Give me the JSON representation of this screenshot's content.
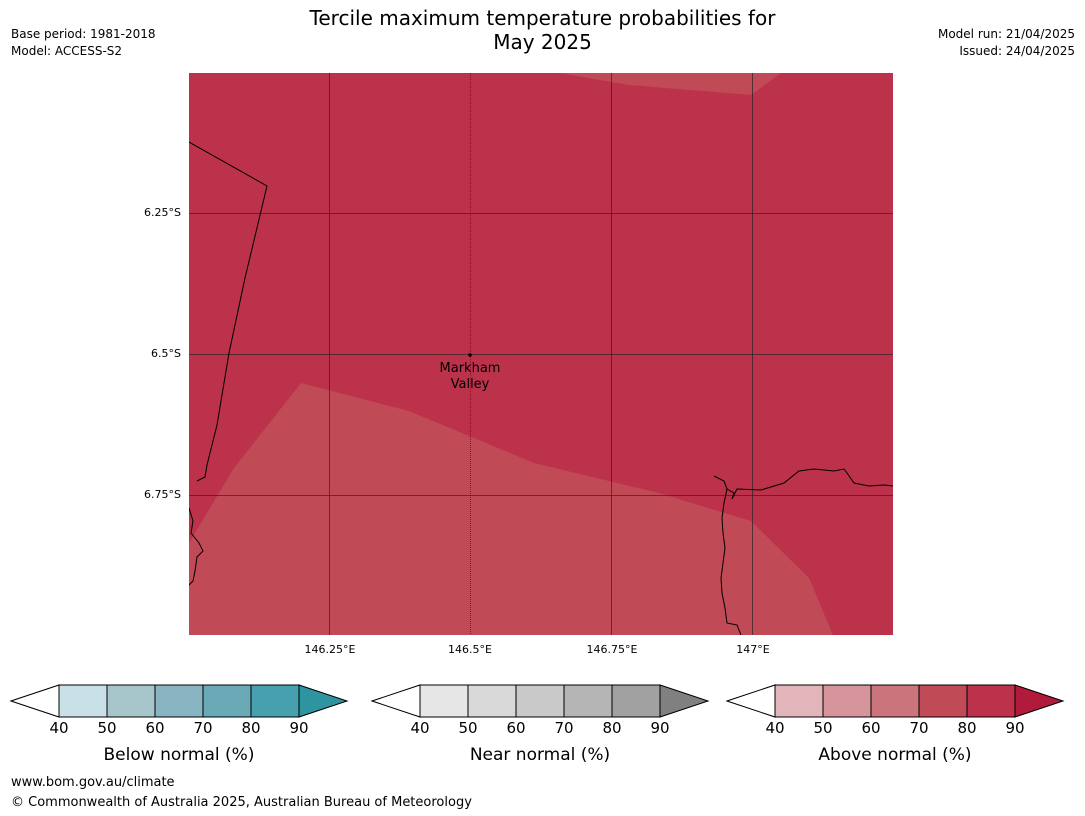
{
  "header": {
    "title_line1": "Tercile maximum temperature probabilities for",
    "title_line2": "May 2025",
    "base_period": "Base period: 1981-2018",
    "model": "Model: ACCESS-S2",
    "model_run": "Model run: 21/04/2025",
    "issued": "Issued: 24/04/2025"
  },
  "map": {
    "lat_labels": [
      "6.25°S",
      "6.5°S",
      "6.75°S"
    ],
    "lon_labels": [
      "146.25°E",
      "146.5°E",
      "146.75°E",
      "147°E"
    ],
    "place": {
      "name_line1": "Markham",
      "name_line2": "Valley",
      "lon": 146.5,
      "lat": -6.5
    },
    "colors": {
      "above_80_90": "#BB324A",
      "above_70_80": "#C14A57"
    }
  },
  "colorbars": [
    {
      "caption": "Below normal (%)",
      "ticks": [
        "40",
        "50",
        "60",
        "70",
        "80",
        "90"
      ],
      "colors": [
        "#ffffff",
        "#C8E1E6",
        "#A7C6CB",
        "#89B4C1",
        "#6AAAB7",
        "#46A0AE",
        "#2D94A0"
      ]
    },
    {
      "caption": "Near normal (%)",
      "ticks": [
        "40",
        "50",
        "60",
        "70",
        "80",
        "90"
      ],
      "colors": [
        "#ffffff",
        "#E6E6E6",
        "#D9D9D9",
        "#C9C9C9",
        "#B5B5B5",
        "#A1A1A1",
        "#808080"
      ]
    },
    {
      "caption": "Above normal (%)",
      "ticks": [
        "40",
        "50",
        "60",
        "70",
        "80",
        "90"
      ],
      "colors": [
        "#ffffff",
        "#E1B5BA",
        "#D6949B",
        "#CB747C",
        "#C14A57",
        "#BB324A",
        "#B01B3B"
      ]
    }
  ],
  "footer": {
    "url": "www.bom.gov.au/climate",
    "copyright": "© Commonwealth of Australia 2025, Australian Bureau of Meteorology"
  }
}
